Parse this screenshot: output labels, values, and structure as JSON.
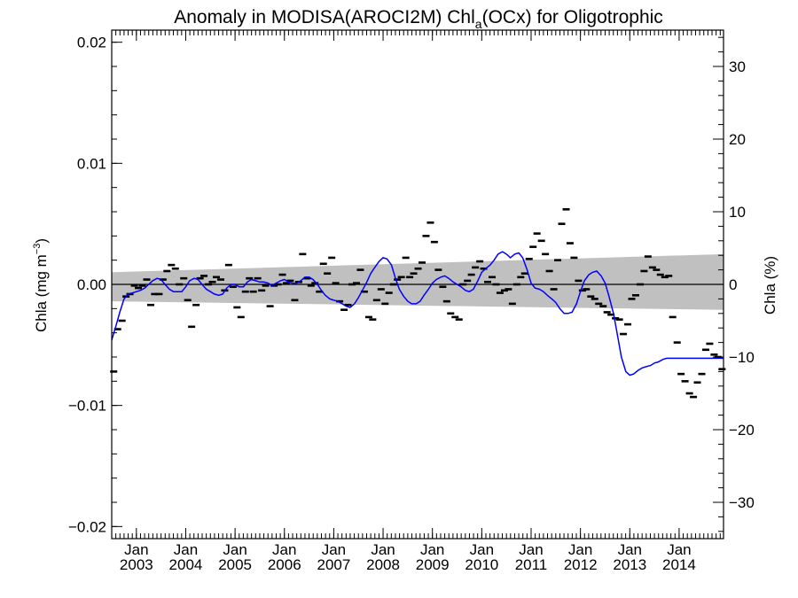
{
  "chart_data": {
    "type": "scatter",
    "title": {
      "prefix": "Anomaly in MODISA(AROCI2M) Chl",
      "subscript": "a",
      "suffix": "(OCx) for Oligotrophic"
    },
    "ylabel": {
      "main": "Chla (mg m",
      "sup": "−3",
      "end": ")"
    },
    "y2label": "Chla (%)",
    "ylim": [
      -0.021,
      0.021
    ],
    "y2lim": [
      -35,
      35
    ],
    "xlim": [
      2002.5,
      2014.9
    ],
    "yticks": [
      {
        "value": -0.02,
        "label": "−0.02"
      },
      {
        "value": -0.01,
        "label": "−0.01"
      },
      {
        "value": 0.0,
        "label": "0.00"
      },
      {
        "value": 0.01,
        "label": "0.01"
      },
      {
        "value": 0.02,
        "label": "0.02"
      }
    ],
    "y2ticks": [
      {
        "value": -30,
        "label": "−30"
      },
      {
        "value": -20,
        "label": "−20"
      },
      {
        "value": -10,
        "label": "−10"
      },
      {
        "value": 0,
        "label": "0"
      },
      {
        "value": 10,
        "label": "10"
      },
      {
        "value": 20,
        "label": "20"
      },
      {
        "value": 30,
        "label": "30"
      }
    ],
    "xticks": [
      {
        "value": 2003.0,
        "month": "Jan",
        "year": "2003"
      },
      {
        "value": 2004.0,
        "month": "Jan",
        "year": "2004"
      },
      {
        "value": 2005.0,
        "month": "Jan",
        "year": "2005"
      },
      {
        "value": 2006.0,
        "month": "Jan",
        "year": "2006"
      },
      {
        "value": 2007.0,
        "month": "Jan",
        "year": "2007"
      },
      {
        "value": 2008.0,
        "month": "Jan",
        "year": "2008"
      },
      {
        "value": 2009.0,
        "month": "Jan",
        "year": "2009"
      },
      {
        "value": 2010.0,
        "month": "Jan",
        "year": "2010"
      },
      {
        "value": 2011.0,
        "month": "Jan",
        "year": "2011"
      },
      {
        "value": 2012.0,
        "month": "Jan",
        "year": "2012"
      },
      {
        "value": 2013.0,
        "month": "Jan",
        "year": "2013"
      },
      {
        "value": 2014.0,
        "month": "Jan",
        "year": "2014"
      }
    ],
    "trend_band": {
      "x": [
        2002.5,
        2014.9
      ],
      "upper": [
        0.001,
        0.0025
      ],
      "lower": [
        -0.0014,
        -0.0021
      ]
    },
    "zero_line": 0.0,
    "series": [
      {
        "kind": "points",
        "color": "#000000",
        "x": [
          2002.54,
          2002.62,
          2002.71,
          2002.79,
          2002.87,
          2002.96,
          2003.04,
          2003.12,
          2003.21,
          2003.29,
          2003.37,
          2003.46,
          2003.54,
          2003.62,
          2003.71,
          2003.79,
          2003.87,
          2003.96,
          2004.04,
          2004.12,
          2004.21,
          2004.29,
          2004.37,
          2004.46,
          2004.54,
          2004.62,
          2004.71,
          2004.79,
          2004.87,
          2004.96,
          2005.04,
          2005.12,
          2005.21,
          2005.29,
          2005.37,
          2005.46,
          2005.54,
          2005.62,
          2005.71,
          2005.79,
          2005.87,
          2005.96,
          2006.04,
          2006.12,
          2006.21,
          2006.29,
          2006.37,
          2006.46,
          2006.54,
          2006.62,
          2006.71,
          2006.79,
          2006.87,
          2006.96,
          2007.04,
          2007.12,
          2007.21,
          2007.29,
          2007.37,
          2007.46,
          2007.54,
          2007.62,
          2007.71,
          2007.79,
          2007.87,
          2007.96,
          2008.04,
          2008.12,
          2008.21,
          2008.29,
          2008.37,
          2008.46,
          2008.54,
          2008.62,
          2008.71,
          2008.79,
          2008.87,
          2008.96,
          2009.04,
          2009.12,
          2009.21,
          2009.29,
          2009.37,
          2009.46,
          2009.54,
          2009.62,
          2009.71,
          2009.79,
          2009.87,
          2009.96,
          2010.04,
          2010.12,
          2010.21,
          2010.29,
          2010.37,
          2010.46,
          2010.54,
          2010.62,
          2010.71,
          2010.79,
          2010.87,
          2010.96,
          2011.04,
          2011.12,
          2011.21,
          2011.29,
          2011.37,
          2011.46,
          2011.54,
          2011.62,
          2011.71,
          2011.79,
          2011.87,
          2011.96,
          2012.04,
          2012.12,
          2012.21,
          2012.29,
          2012.37,
          2012.46,
          2012.54,
          2012.62,
          2012.71,
          2012.79,
          2012.87,
          2012.96,
          2013.04,
          2013.12,
          2013.21,
          2013.29,
          2013.37,
          2013.46,
          2013.54,
          2013.62,
          2013.71,
          2013.79,
          2013.87,
          2013.96,
          2014.04,
          2014.12,
          2014.21,
          2014.29,
          2014.37,
          2014.46,
          2014.54,
          2014.62,
          2014.71,
          2014.79,
          2014.87
        ],
        "y": [
          -0.0072,
          -0.0037,
          -0.003,
          -0.001,
          -0.0008,
          -0.0001,
          -0.0003,
          -0.0001,
          0.0004,
          -0.0017,
          -0.0008,
          -0.0008,
          0.0004,
          0.0011,
          0.0016,
          0.0013,
          0.0,
          0.0005,
          -0.0013,
          -0.0035,
          -0.0017,
          0.0005,
          0.0007,
          0.0,
          0.0002,
          0.0006,
          0.0004,
          -0.0005,
          0.0016,
          -0.0002,
          -0.0019,
          -0.0027,
          -0.0006,
          0.0005,
          -0.0006,
          0.0005,
          -0.0005,
          -0.0001,
          -0.0018,
          -0.0001,
          0.0,
          0.0008,
          0.0001,
          0.0003,
          -0.0013,
          0.0002,
          0.0025,
          0.0005,
          -0.0001,
          0.0001,
          -0.0006,
          0.0017,
          0.0009,
          0.0022,
          0.0001,
          -0.0014,
          -0.0021,
          -0.0017,
          0.0,
          0.0001,
          0.0012,
          -0.0006,
          -0.0027,
          -0.0029,
          -0.0013,
          -0.0004,
          -0.0016,
          -0.0007,
          0.0,
          0.0004,
          0.0006,
          0.0022,
          0.0006,
          0.0009,
          0.0013,
          0.0018,
          0.004,
          0.0051,
          0.0035,
          0.0012,
          -0.0002,
          -0.0014,
          -0.0024,
          -0.0027,
          -0.0029,
          0.0,
          0.0003,
          0.0008,
          0.0014,
          0.0019,
          0.0013,
          0.0002,
          0.0006,
          0.0,
          -0.0007,
          -0.0005,
          -0.0004,
          -0.0016,
          0.0,
          0.0006,
          0.0009,
          0.0021,
          0.0031,
          0.0042,
          0.0036,
          0.0025,
          0.0011,
          -0.0004,
          0.002,
          0.005,
          0.0062,
          0.0034,
          0.0022,
          0.0003,
          -0.0005,
          -0.0004,
          -0.001,
          -0.0012,
          -0.0016,
          -0.0018,
          -0.0023,
          -0.0025,
          -0.0028,
          -0.0029,
          -0.0041,
          -0.0033,
          -0.0012,
          -0.0009,
          0.0,
          0.0011,
          0.0023,
          0.0014,
          0.0012,
          0.0008,
          0.0006,
          0.0007,
          -0.0027,
          -0.0048,
          -0.0074,
          -0.008,
          -0.009,
          -0.0093,
          -0.0081,
          -0.0074,
          -0.0054,
          -0.0049,
          -0.0058,
          -0.006,
          -0.007
        ]
      },
      {
        "kind": "line",
        "color": "#0000ff",
        "x": [
          2002.5,
          2002.58,
          2002.67,
          2002.75,
          2002.83,
          2002.92,
          2003.0,
          2003.08,
          2003.17,
          2003.25,
          2003.33,
          2003.42,
          2003.5,
          2003.58,
          2003.67,
          2003.75,
          2003.83,
          2003.92,
          2004.0,
          2004.08,
          2004.17,
          2004.25,
          2004.33,
          2004.42,
          2004.5,
          2004.58,
          2004.67,
          2004.75,
          2004.83,
          2004.92,
          2005.0,
          2005.08,
          2005.17,
          2005.25,
          2005.33,
          2005.42,
          2005.5,
          2005.58,
          2005.67,
          2005.75,
          2005.83,
          2005.92,
          2006.0,
          2006.08,
          2006.17,
          2006.25,
          2006.33,
          2006.42,
          2006.5,
          2006.58,
          2006.67,
          2006.75,
          2006.83,
          2006.92,
          2007.0,
          2007.08,
          2007.17,
          2007.25,
          2007.33,
          2007.42,
          2007.5,
          2007.58,
          2007.67,
          2007.75,
          2007.83,
          2007.92,
          2008.0,
          2008.08,
          2008.17,
          2008.25,
          2008.33,
          2008.42,
          2008.5,
          2008.58,
          2008.67,
          2008.75,
          2008.83,
          2008.92,
          2009.0,
          2009.08,
          2009.17,
          2009.25,
          2009.33,
          2009.42,
          2009.5,
          2009.58,
          2009.67,
          2009.75,
          2009.83,
          2009.92,
          2010.0,
          2010.08,
          2010.17,
          2010.25,
          2010.33,
          2010.42,
          2010.5,
          2010.58,
          2010.67,
          2010.75,
          2010.83,
          2010.92,
          2011.0,
          2011.08,
          2011.17,
          2011.25,
          2011.33,
          2011.42,
          2011.5,
          2011.58,
          2011.67,
          2011.75,
          2011.83,
          2011.92,
          2012.0,
          2012.08,
          2012.17,
          2012.25,
          2012.33,
          2012.42,
          2012.5,
          2012.58,
          2012.67,
          2012.75,
          2012.83,
          2012.92,
          2013.0,
          2013.08,
          2013.17,
          2013.25,
          2013.33,
          2013.42,
          2013.5,
          2013.58,
          2013.67,
          2013.75,
          2013.83,
          2013.92,
          2014.0,
          2014.08,
          2014.17,
          2014.25,
          2014.33,
          2014.42,
          2014.5,
          2014.58,
          2014.67,
          2014.75,
          2014.83,
          2014.9
        ],
        "y": [
          -0.0046,
          -0.0035,
          -0.0022,
          -0.0012,
          -0.0008,
          -0.0007,
          -0.0006,
          -0.0005,
          -0.0003,
          0.0,
          0.0003,
          0.0005,
          0.0004,
          0.0,
          -0.0004,
          -0.0006,
          -0.0006,
          -0.0006,
          -0.0002,
          0.0003,
          0.0005,
          0.0004,
          0.0,
          -0.0004,
          -0.0006,
          -0.0008,
          -0.0009,
          -0.0008,
          -0.0003,
          0.0,
          0.0,
          -0.0002,
          -0.0002,
          0.0002,
          0.0004,
          0.0003,
          0.0002,
          0.0002,
          0.0001,
          -0.0001,
          0.0001,
          0.0003,
          0.0004,
          0.0002,
          0.0001,
          0.0001,
          0.0003,
          0.0006,
          0.0006,
          0.0004,
          0.0,
          -0.0005,
          -0.0009,
          -0.0012,
          -0.0013,
          -0.0014,
          -0.0016,
          -0.0018,
          -0.0019,
          -0.0016,
          -0.0011,
          -0.0005,
          0.0002,
          0.0009,
          0.0014,
          0.0019,
          0.0022,
          0.0021,
          0.0016,
          0.0005,
          -0.0004,
          -0.001,
          -0.0014,
          -0.0016,
          -0.0016,
          -0.0014,
          -0.0009,
          -0.0004,
          0.0001,
          0.0004,
          0.0006,
          0.0007,
          0.0005,
          0.0002,
          0.0,
          -0.0002,
          -0.0005,
          -0.0006,
          -0.0004,
          0.0003,
          0.001,
          0.0013,
          0.0016,
          0.002,
          0.0025,
          0.0027,
          0.0025,
          0.0022,
          0.0025,
          0.0026,
          0.0022,
          0.0012,
          0.0001,
          -0.0003,
          -0.0004,
          -0.0006,
          -0.0009,
          -0.0012,
          -0.0015,
          -0.002,
          -0.0024,
          -0.0024,
          -0.0023,
          -0.0016,
          -0.0006,
          0.0003,
          0.0008,
          0.001,
          0.0011,
          0.0007,
          0.0001,
          -0.001,
          -0.0024,
          -0.0042,
          -0.006,
          -0.0072,
          -0.0075,
          -0.0074,
          -0.0071,
          -0.0069,
          -0.0068,
          -0.0067,
          -0.0065,
          -0.0064,
          -0.0062,
          -0.0061,
          -0.0061,
          -0.0061,
          -0.0061,
          -0.0061,
          -0.0061,
          -0.0061,
          -0.0061,
          -0.0061,
          -0.0061,
          -0.0061,
          -0.0061,
          -0.0061,
          -0.0061,
          -0.0061
        ]
      }
    ]
  }
}
